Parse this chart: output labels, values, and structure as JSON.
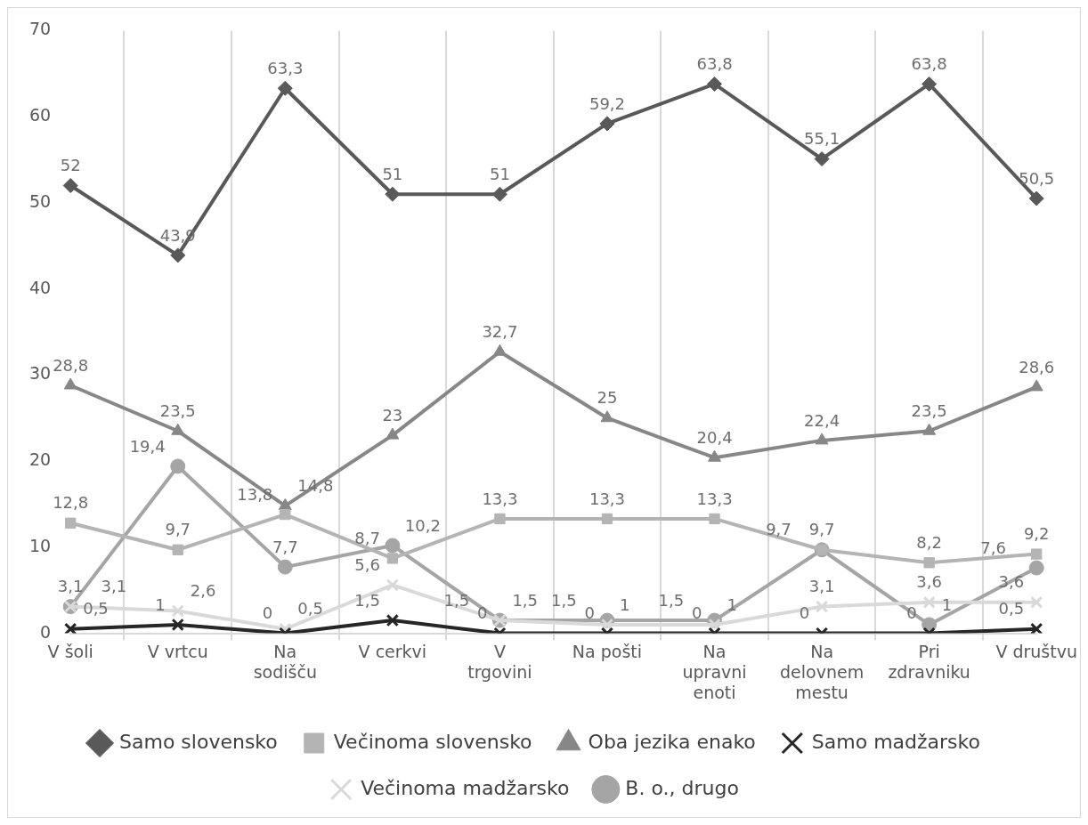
{
  "chart_data": {
    "type": "line",
    "categories": [
      "V šoli",
      "V vrtcu",
      "Na sodišču",
      "V cerkvi",
      "V trgovini",
      "Na pošti",
      "Na upravni enoti",
      "Na delovnem mestu",
      "Pri zdravniku",
      "V društvu"
    ],
    "series": [
      {
        "name": "Samo slovensko",
        "color": "#595959",
        "marker": "diamond",
        "values": [
          52,
          43.9,
          63.3,
          51,
          51,
          59.2,
          63.8,
          55.1,
          63.8,
          50.5
        ],
        "value_labels": [
          "52",
          "43,9",
          "63,3",
          "51",
          "51",
          "59,2",
          "63,8",
          "55,1",
          "63,8",
          "50,5"
        ]
      },
      {
        "name": "Večinoma slovensko",
        "color": "#b4b4b4",
        "marker": "square",
        "values": [
          12.8,
          9.7,
          13.8,
          8.7,
          13.3,
          13.3,
          13.3,
          9.7,
          8.2,
          9.2
        ],
        "value_labels": [
          "12,8",
          "9,7",
          "13,8",
          "8,7",
          "13,3",
          "13,3",
          "13,3",
          "9,7",
          "8,2",
          "9,2"
        ]
      },
      {
        "name": "Oba jezika enako",
        "color": "#878787",
        "marker": "triangle",
        "values": [
          28.8,
          23.5,
          14.8,
          23,
          32.7,
          25,
          20.4,
          22.4,
          23.5,
          28.6
        ],
        "value_labels": [
          "28,8",
          "23,5",
          "14,8",
          "23",
          "32,7",
          "25",
          "20,4",
          "22,4",
          "23,5",
          "28,6"
        ]
      },
      {
        "name": "Samo madžarsko",
        "color": "#262626",
        "marker": "cross",
        "values": [
          0.5,
          1,
          0,
          1.5,
          0,
          0,
          0,
          0,
          0,
          0.5
        ],
        "value_labels": [
          "0,5",
          "1",
          "0",
          "1,5",
          "0",
          "0",
          "0",
          "0",
          "0",
          "0,5"
        ]
      },
      {
        "name": "Večinoma madžarsko",
        "color": "#d9d9d9",
        "marker": "cross",
        "values": [
          3.1,
          2.6,
          0.5,
          5.6,
          1.5,
          1,
          1,
          3.1,
          3.6,
          3.6
        ],
        "value_labels": [
          "3,1",
          "2,6",
          "0,5",
          "5,6",
          "1,5",
          "1",
          "1",
          "3,1",
          "3,6",
          "3,6"
        ]
      },
      {
        "name": "B. o., drugo",
        "color": "#a5a5a5",
        "marker": "circle",
        "values": [
          3.1,
          19.4,
          7.7,
          10.2,
          1.5,
          1.5,
          1.5,
          9.7,
          1,
          7.6
        ],
        "value_labels": [
          "3,1",
          "19,4",
          "7,7",
          "10,2",
          "1,5",
          "1,5",
          "1,5",
          "9,7",
          "1",
          "7,6"
        ]
      }
    ],
    "ylim": [
      0,
      70
    ],
    "yticks": [
      0,
      10,
      20,
      30,
      40,
      50,
      60,
      70
    ],
    "grid": "x",
    "legend": "bottom"
  }
}
